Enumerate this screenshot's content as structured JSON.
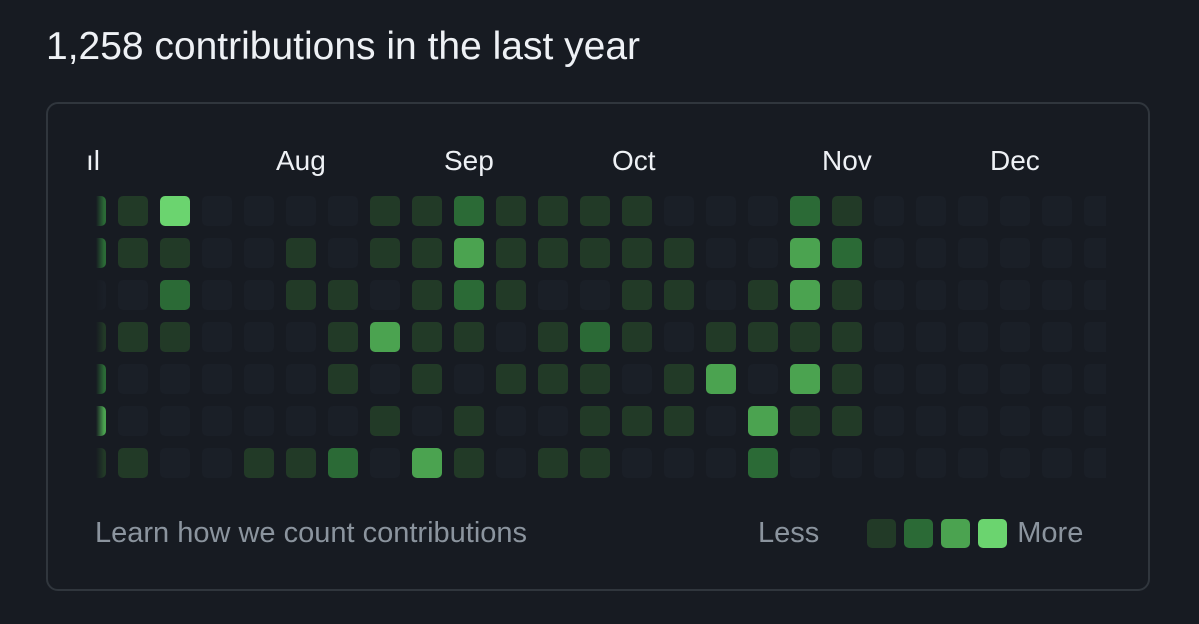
{
  "header": {
    "title": "1,258 contributions in the last year"
  },
  "calendar": {
    "months": [
      {
        "label": "ıl"
      },
      {
        "label": "Aug"
      },
      {
        "label": "Sep"
      },
      {
        "label": "Oct"
      },
      {
        "label": "Nov"
      },
      {
        "label": "Dec"
      }
    ],
    "level_colors": [
      "#1d232b",
      "#223a27",
      "#2b6a36",
      "#4ba350",
      "#6bd46f"
    ],
    "weeks": [
      [
        2,
        2,
        0,
        1,
        2,
        3,
        1
      ],
      [
        1,
        1,
        0,
        1,
        0,
        0,
        1
      ],
      [
        4,
        1,
        2,
        1,
        0,
        0,
        0
      ],
      [
        0,
        0,
        0,
        0,
        0,
        0,
        0
      ],
      [
        0,
        0,
        0,
        0,
        0,
        0,
        1
      ],
      [
        0,
        1,
        1,
        0,
        0,
        0,
        1
      ],
      [
        0,
        0,
        1,
        1,
        1,
        0,
        2
      ],
      [
        1,
        1,
        0,
        3,
        0,
        1,
        0
      ],
      [
        1,
        1,
        1,
        1,
        1,
        0,
        3
      ],
      [
        2,
        3,
        2,
        1,
        0,
        1,
        1
      ],
      [
        1,
        1,
        1,
        0,
        1,
        0,
        0
      ],
      [
        1,
        1,
        0,
        1,
        1,
        0,
        1
      ],
      [
        1,
        1,
        0,
        2,
        1,
        1,
        1
      ],
      [
        1,
        1,
        1,
        1,
        0,
        1,
        0
      ],
      [
        0,
        1,
        1,
        0,
        1,
        1,
        0
      ],
      [
        0,
        0,
        0,
        1,
        3,
        0,
        0
      ],
      [
        0,
        0,
        1,
        1,
        0,
        3,
        2
      ],
      [
        2,
        3,
        3,
        1,
        3,
        1,
        0
      ],
      [
        1,
        2,
        1,
        1,
        1,
        1,
        0
      ],
      [
        0,
        0,
        0,
        0,
        0,
        0,
        0
      ],
      [
        0,
        0,
        0,
        0,
        0,
        0,
        0
      ],
      [
        0,
        0,
        0,
        0,
        0,
        0,
        0
      ],
      [
        0,
        0,
        0,
        0,
        0,
        0,
        0
      ],
      [
        0,
        0,
        0,
        0,
        0,
        0,
        0
      ],
      [
        0,
        0,
        0,
        0,
        0,
        0,
        0
      ]
    ]
  },
  "footer": {
    "learn_link": "Learn how we count contributions",
    "legend_less": "Less",
    "legend_more": "More",
    "legend_levels": [
      1,
      2,
      3,
      4
    ]
  }
}
